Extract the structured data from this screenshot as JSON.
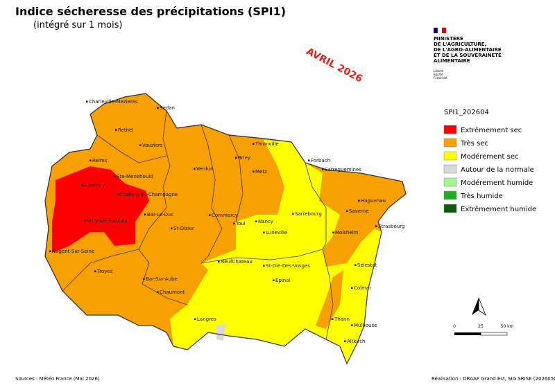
{
  "header": {
    "title": "Indice sécheresse des précipitations (SPI1)",
    "subtitle": "(intégré sur 1 mois)",
    "period": "AVRIL 2026"
  },
  "logo": {
    "lines": [
      "MINISTÈRE",
      "DE L'AGRICULTURE,",
      "DE L'AGRO-ALIMENTAIRE",
      "ET DE LA SOUVERAINETÉ",
      "ALIMENTAIRE"
    ],
    "motto": [
      "Liberté",
      "Égalité",
      "Fraternité"
    ]
  },
  "legend": {
    "title": "SPI1_202604",
    "items": [
      {
        "label": "Extrêmement sec",
        "color": "#ff0000"
      },
      {
        "label": "Très sec",
        "color": "#f7a100"
      },
      {
        "label": "Modérement sec",
        "color": "#ffff00"
      },
      {
        "label": "Autour de la normale",
        "color": "#d9d9d9"
      },
      {
        "label": "Modérement humide",
        "color": "#a3f58c"
      },
      {
        "label": "Très humide",
        "color": "#1fae1f"
      },
      {
        "label": "Extrêmement humide",
        "color": "#0b5b0b"
      }
    ]
  },
  "scale_bar": {
    "labels": [
      "0",
      "25",
      "50 km"
    ]
  },
  "cities": [
    "Charleville-Mezieres",
    "Sedan",
    "Rethel",
    "Vouziers",
    "Reims",
    "Ste-Menehould",
    "Epernay",
    "Chalons-En-Champagne",
    "Vitry-Le-Francois",
    "Bar-Le-Duc",
    "Verdun",
    "Briey",
    "Thionville",
    "Metz",
    "Forbach",
    "Sarreguemines",
    "Haguenau",
    "Saverne",
    "Sarrebourg",
    "Strasbourg",
    "Commercy",
    "Toul",
    "Nancy",
    "Luneville",
    "St-Dizier",
    "Molsheim",
    "Nogent-Sur-Seine",
    "Troyes",
    "Bar-Sur-Aube",
    "Chaumont",
    "NeufChateau",
    "St-Die-Des-Vosges",
    "Selestat",
    "Epinal",
    "Colmar",
    "Langres",
    "Thann",
    "Mulhouse",
    "Altkirch"
  ],
  "footer": {
    "sources": "Sources : Météo France (Mai 2026)",
    "credit": "Réalisation : DRAAF Grand Est, SIG SRISE (20260506)"
  }
}
